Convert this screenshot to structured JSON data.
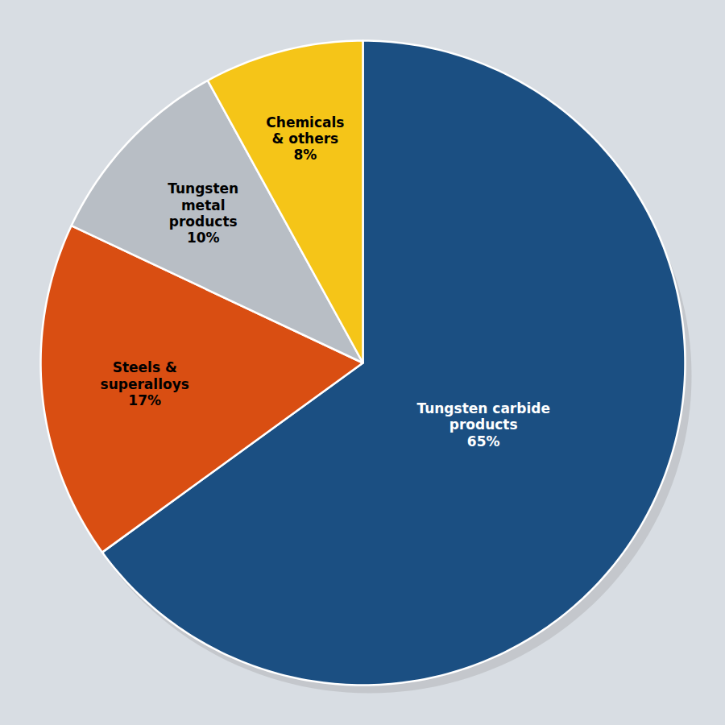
{
  "chart_data": {
    "type": "pie",
    "categories": [
      "Tungsten carbide\nproducts",
      "Steels &\nsuperalloys",
      "Tungsten\nmetal\nproducts",
      "Chemicals\n& others"
    ],
    "values": [
      65,
      17,
      10,
      8
    ],
    "value_labels": [
      "65%",
      "17%",
      "10%",
      "8%"
    ],
    "colors": [
      "#1b4f82",
      "#d94e12",
      "#b8bec5",
      "#f5c518"
    ],
    "data_labels": true
  }
}
